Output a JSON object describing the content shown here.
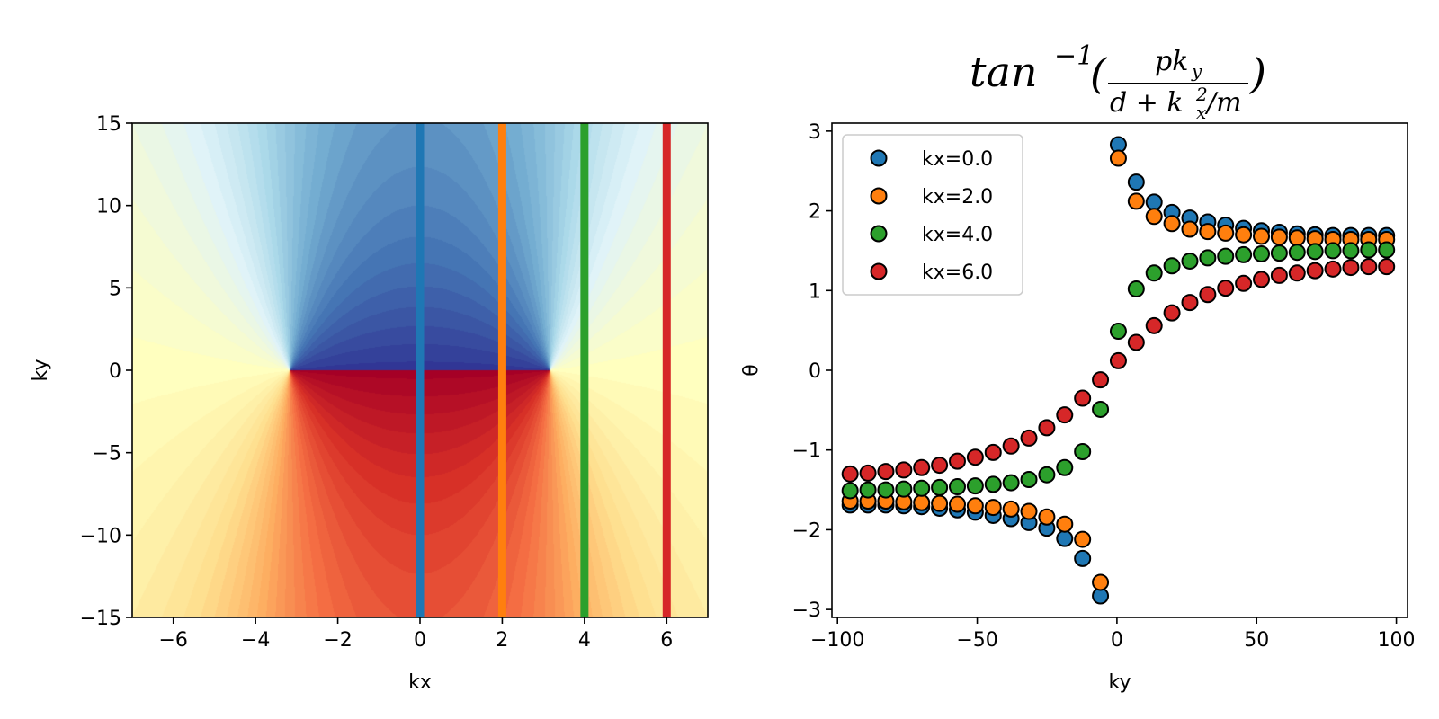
{
  "chart_data": [
    {
      "type": "heatmap",
      "description_free": true,
      "xlabel": "kx",
      "ylabel": "ky",
      "xlim": [
        -7,
        7
      ],
      "ylim": [
        -15,
        15
      ],
      "x_ticks": [
        -6,
        -4,
        -2,
        0,
        2,
        4,
        6
      ],
      "y_ticks": [
        -15,
        -10,
        -5,
        0,
        5,
        10,
        15
      ],
      "x_tick_labels": [
        "−6",
        "−4",
        "−2",
        "0",
        "2",
        "4",
        "6"
      ],
      "y_tick_labels": [
        "−15",
        "−10",
        "−5",
        "0",
        "5",
        "10",
        "15"
      ],
      "colormap": "RdYlBu",
      "field": "atan2(ky, d + kx^2/m)",
      "d": -10,
      "m": 1,
      "vertical_lines": [
        {
          "x": 0,
          "color": "#1f77b4"
        },
        {
          "x": 2,
          "color": "#ff7f0e"
        },
        {
          "x": 4,
          "color": "#2ca02c"
        },
        {
          "x": 6,
          "color": "#d62728"
        }
      ]
    },
    {
      "type": "scatter",
      "title_parts": {
        "base": "tan",
        "exp": "−1",
        "numerator": "pk",
        "num_sub": "y",
        "denom_left": "d + k",
        "denom_sup": "2",
        "denom_sub": "x",
        "denom_right": "/m"
      },
      "xlabel": "ky",
      "ylabel": "θ",
      "xlim": [
        -102,
        104
      ],
      "ylim": [
        -3.1,
        3.1
      ],
      "x_ticks": [
        -100,
        -50,
        0,
        50,
        100
      ],
      "y_ticks": [
        -3,
        -2,
        -1,
        0,
        1,
        2,
        3
      ],
      "x_tick_labels": [
        "−100",
        "−50",
        "0",
        "50",
        "100"
      ],
      "y_tick_labels": [
        "−3",
        "−2",
        "−1",
        "0",
        "1",
        "2",
        "3"
      ],
      "legend_position": "top-left",
      "x": [
        -95.5,
        -89.1,
        -82.7,
        -76.3,
        -69.9,
        -63.5,
        -57.1,
        -50.7,
        -44.3,
        -37.9,
        -31.5,
        -25.1,
        -18.7,
        -12.3,
        -5.9,
        0.5,
        6.9,
        13.3,
        19.7,
        26.1,
        32.5,
        38.9,
        45.3,
        51.7,
        58.1,
        64.5,
        70.9,
        77.3,
        83.7,
        90.1,
        96.5
      ],
      "series": [
        {
          "name": "kx=0.0",
          "color": "#1f77b4",
          "kx": 0,
          "values": [
            -1.69,
            -1.69,
            -1.69,
            -1.7,
            -1.71,
            -1.73,
            -1.75,
            -1.78,
            -1.82,
            -1.86,
            -1.91,
            -1.98,
            -2.11,
            -2.36,
            -2.83,
            2.83,
            2.36,
            2.11,
            1.98,
            1.91,
            1.86,
            1.82,
            1.78,
            1.75,
            1.73,
            1.71,
            1.7,
            1.69,
            1.69,
            1.69,
            1.69
          ]
        },
        {
          "name": "kx=2.0",
          "color": "#ff7f0e",
          "kx": 2,
          "values": [
            -1.64,
            -1.64,
            -1.64,
            -1.65,
            -1.66,
            -1.67,
            -1.68,
            -1.7,
            -1.72,
            -1.74,
            -1.77,
            -1.84,
            -1.93,
            -2.12,
            -2.66,
            2.66,
            2.12,
            1.93,
            1.84,
            1.77,
            1.74,
            1.72,
            1.7,
            1.68,
            1.67,
            1.66,
            1.65,
            1.64,
            1.64,
            1.64,
            1.64
          ]
        },
        {
          "name": "kx=4.0",
          "color": "#2ca02c",
          "kx": 4,
          "values": [
            -1.51,
            -1.5,
            -1.5,
            -1.49,
            -1.48,
            -1.47,
            -1.46,
            -1.45,
            -1.43,
            -1.41,
            -1.37,
            -1.31,
            -1.22,
            -1.02,
            -0.49,
            0.49,
            1.02,
            1.22,
            1.31,
            1.37,
            1.41,
            1.43,
            1.45,
            1.46,
            1.47,
            1.48,
            1.49,
            1.5,
            1.5,
            1.51,
            1.51
          ]
        },
        {
          "name": "kx=6.0",
          "color": "#d62728",
          "kx": 6,
          "values": [
            -1.3,
            -1.29,
            -1.27,
            -1.25,
            -1.22,
            -1.19,
            -1.14,
            -1.09,
            -1.03,
            -0.95,
            -0.85,
            -0.72,
            -0.56,
            -0.35,
            -0.12,
            0.12,
            0.35,
            0.56,
            0.72,
            0.85,
            0.95,
            1.03,
            1.09,
            1.14,
            1.19,
            1.22,
            1.25,
            1.27,
            1.29,
            1.3,
            1.3
          ]
        }
      ]
    }
  ]
}
